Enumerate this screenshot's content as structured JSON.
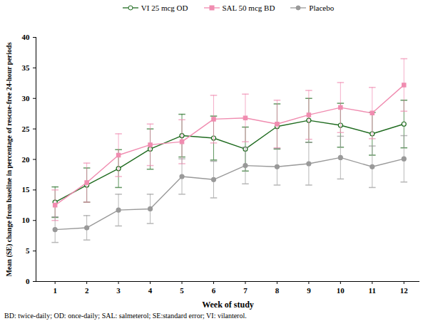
{
  "chart_data": {
    "type": "line",
    "x_label": "Week of study",
    "y_label": "Mean (SE) change from baseline in percentage of rescue-free 24-hour periods",
    "caption": "BD: twice-daily; OD: once-daily; SAL: salmeterol; SE:standard error; VI: vilanterol.",
    "x": [
      1,
      2,
      3,
      4,
      5,
      6,
      7,
      8,
      9,
      10,
      11,
      12
    ],
    "xlim": [
      0.4,
      12.5
    ],
    "xticks": [
      1,
      2,
      3,
      4,
      5,
      6,
      7,
      8,
      9,
      10,
      11,
      12
    ],
    "ylim": [
      0,
      40
    ],
    "yticks": [
      0,
      5,
      10,
      15,
      20,
      25,
      30,
      35,
      40
    ],
    "grid": false,
    "legend": "top",
    "series": [
      {
        "name": "VI 25 mcg OD",
        "color": "#1f6b1f",
        "marker": "circle-open",
        "line_style": "solid",
        "values": [
          13.0,
          15.8,
          18.5,
          21.7,
          23.9,
          23.5,
          21.7,
          25.4,
          26.4,
          25.6,
          24.2,
          25.8
        ],
        "errors": [
          2.5,
          2.8,
          3.1,
          3.3,
          3.5,
          3.6,
          3.6,
          3.7,
          3.6,
          3.6,
          3.5,
          3.9
        ]
      },
      {
        "name": "SAL 50 mcg BD",
        "color": "#f08cb0",
        "marker": "square",
        "line_style": "solid",
        "values": [
          12.5,
          16.2,
          20.7,
          22.4,
          22.9,
          26.6,
          26.8,
          25.8,
          27.3,
          28.5,
          27.6,
          32.2
        ],
        "errors": [
          2.5,
          3.2,
          3.5,
          3.4,
          3.6,
          3.9,
          3.9,
          3.9,
          4.0,
          4.1,
          4.2,
          4.3
        ]
      },
      {
        "name": "Placebo",
        "color": "#999999",
        "marker": "circle",
        "line_style": "solid",
        "values": [
          8.5,
          8.8,
          11.7,
          11.9,
          17.2,
          16.7,
          19.0,
          18.8,
          19.3,
          20.3,
          18.8,
          20.1
        ],
        "errors": [
          2.1,
          2.0,
          2.6,
          2.4,
          2.9,
          3.0,
          3.0,
          3.0,
          3.5,
          3.5,
          3.4,
          3.8
        ]
      }
    ]
  }
}
